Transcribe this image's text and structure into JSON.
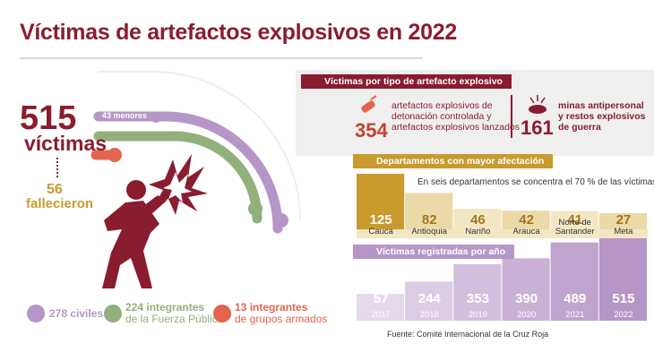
{
  "title": "Víctimas de artefactos explosivos en 2022",
  "total": {
    "number": "515",
    "label": "víctimas"
  },
  "deaths": {
    "number": "56",
    "label": "fallecieron"
  },
  "arc_label": "43 menores",
  "legend": [
    {
      "number": "278",
      "text1": "civiles",
      "text2": "",
      "color": "#b596c7",
      "icon": "person-icon"
    },
    {
      "number": "224",
      "text1": "integrantes",
      "text2": "de la Fuerza Pública",
      "color": "#92b07a",
      "icon": "soldier-icon"
    },
    {
      "number": "13",
      "text1": "integrantes",
      "text2": "de grupos armados",
      "color": "#e2644d",
      "icon": "armed-group-icon"
    }
  ],
  "colors": {
    "brand": "#8a1c2f",
    "gold": "#c99a2e",
    "lilac": "#b596c7",
    "green": "#92b07a",
    "orange": "#e2644d"
  },
  "by_type": {
    "tag": "Víctimas por tipo de artefacto explosivo",
    "items": [
      {
        "number": "354",
        "lines": [
          "artefactos explosivos de",
          "detonación controlada y",
          "artefactos explosivos lanzados"
        ]
      },
      {
        "number": "161",
        "lines": [
          "minas antipersonal",
          "y restos explosivos",
          "de guerra"
        ]
      }
    ]
  },
  "departments": {
    "tag": "Departamentos con mayor afectación",
    "note": "En seis departamentos se concentra el 70 % de las víctimas"
  },
  "by_year": {
    "tag": "Víctimas registradas por año"
  },
  "source": "Fuente: Comité Internacional de la Cruz Roja",
  "chart_data": [
    {
      "type": "bar",
      "title": "Departamentos con mayor afectación",
      "categories": [
        "Cauca",
        "Antioquia",
        "Nariño",
        "Arauca",
        "Norte de Santander",
        "Meta"
      ],
      "values": [
        125,
        82,
        46,
        42,
        41,
        27
      ]
    },
    {
      "type": "bar",
      "title": "Víctimas registradas por año",
      "categories": [
        "2017",
        "2018",
        "2019",
        "2020",
        "2021",
        "2022"
      ],
      "values": [
        57,
        244,
        353,
        390,
        489,
        515
      ]
    },
    {
      "type": "bar",
      "title": "",
      "categories": [
        "menores",
        "civiles",
        "integrantes de la Fuerza Pública",
        "integrantes de grupos armados"
      ],
      "values": [
        43,
        278,
        224,
        13
      ]
    }
  ]
}
